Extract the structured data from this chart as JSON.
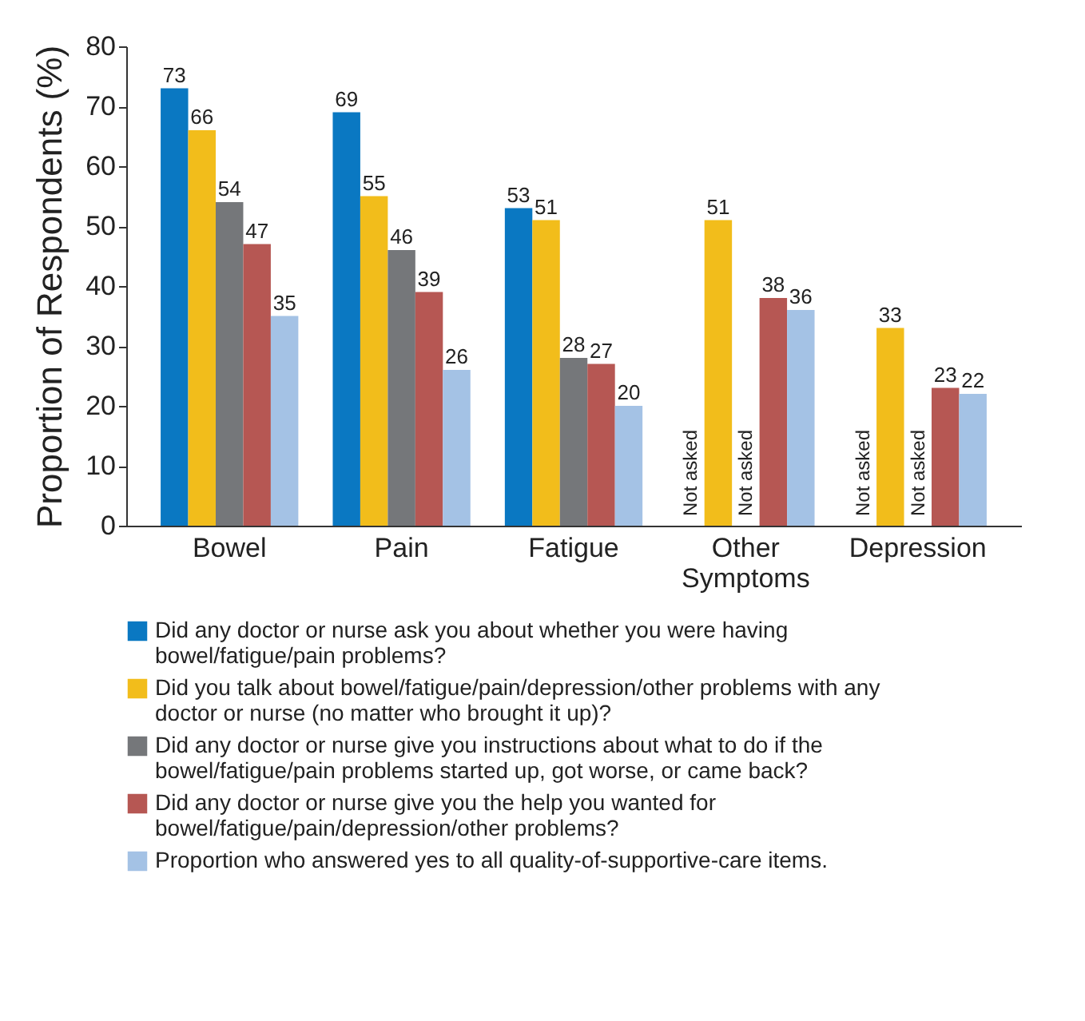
{
  "chart_data": {
    "type": "bar",
    "ylabel": "Proportion of Respondents (%)",
    "categories": [
      "Bowel",
      "Pain",
      "Fatigue",
      "Other Symptoms",
      "Depression"
    ],
    "ylim": [
      0,
      80
    ],
    "yticks": [
      0,
      10,
      20,
      30,
      40,
      50,
      60,
      70,
      80
    ],
    "grid": false,
    "legend": "bottom",
    "series": [
      {
        "name": "Did any doctor or nurse ask you about whether you were having bowel/fatigue/pain problems?",
        "color": "#0a78c2",
        "values": [
          73,
          69,
          53,
          null,
          null
        ],
        "value_labels": [
          "73",
          "69",
          "53",
          "Not asked",
          "Not asked"
        ]
      },
      {
        "name": "Did you talk about bowel/fatigue/pain/depression/other problems with any doctor or nurse (no matter who brought it up)?",
        "color": "#f2bd1b",
        "values": [
          66,
          55,
          51,
          51,
          33
        ],
        "value_labels": [
          "66",
          "55",
          "51",
          "51",
          "33"
        ]
      },
      {
        "name": "Did any doctor or nurse give you instructions about what to do if the bowel/fatigue/pain problems started up, got worse, or came back?",
        "color": "#75777a",
        "values": [
          54,
          46,
          28,
          null,
          null
        ],
        "value_labels": [
          "54",
          "46",
          "28",
          "Not asked",
          "Not asked"
        ]
      },
      {
        "name": "Did any doctor or nurse give you the help you wanted for bowel/fatigue/pain/depression/other problems?",
        "color": "#b65753",
        "values": [
          47,
          39,
          27,
          38,
          23
        ],
        "value_labels": [
          "47",
          "39",
          "27",
          "38",
          "23"
        ]
      },
      {
        "name": "Proportion who answered yes to all quality-of-supportive-care items.",
        "color": "#a4c2e5",
        "values": [
          35,
          26,
          20,
          36,
          22
        ],
        "value_labels": [
          "35",
          "26",
          "20",
          "36",
          "22"
        ]
      }
    ]
  }
}
